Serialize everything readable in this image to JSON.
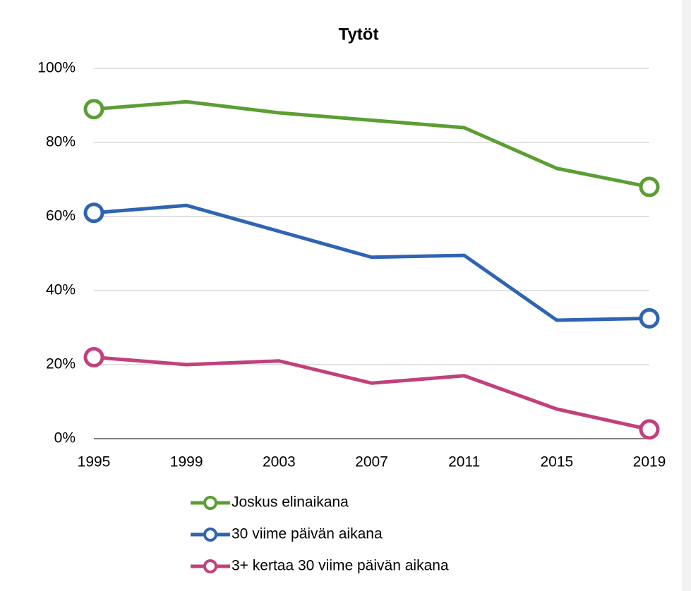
{
  "chart_data": {
    "type": "line",
    "title": "Tytöt",
    "x": [
      1995,
      1999,
      2003,
      2007,
      2011,
      2015,
      2019
    ],
    "xlim": [
      1995,
      2019
    ],
    "xticks": [
      1995,
      1999,
      2003,
      2007,
      2011,
      2015,
      2019
    ],
    "ylim": [
      0,
      100
    ],
    "yticks": [
      {
        "value": 0,
        "label": "0%"
      },
      {
        "value": 20,
        "label": "20%"
      },
      {
        "value": 40,
        "label": "40%"
      },
      {
        "value": 60,
        "label": "60%"
      },
      {
        "value": 80,
        "label": "80%"
      },
      {
        "value": 100,
        "label": "100%"
      }
    ],
    "grid": true,
    "legend": "bottom",
    "series": [
      {
        "name": "Joskus elinaikana",
        "color": "#5b9e34",
        "values": [
          89,
          91,
          88,
          86,
          84,
          73,
          68
        ]
      },
      {
        "name": "30 viime päivän aikana",
        "color": "#2f64b3",
        "values": [
          61,
          63,
          56,
          49,
          49.5,
          32,
          32.5
        ]
      },
      {
        "name": "3+ kertaa 30 viime päivän aikana",
        "color": "#c2407c",
        "values": [
          22,
          20,
          21,
          15,
          17,
          8,
          2.5
        ]
      }
    ]
  }
}
